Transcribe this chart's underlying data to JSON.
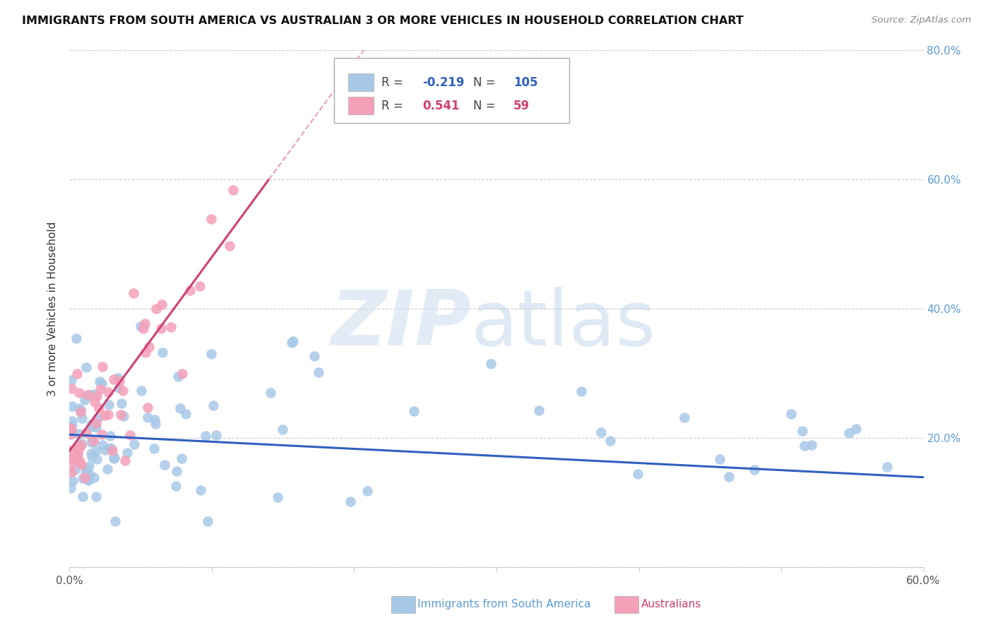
{
  "title": "IMMIGRANTS FROM SOUTH AMERICA VS AUSTRALIAN 3 OR MORE VEHICLES IN HOUSEHOLD CORRELATION CHART",
  "source": "Source: ZipAtlas.com",
  "ylabel": "3 or more Vehicles in Household",
  "xlim": [
    0.0,
    0.6
  ],
  "ylim": [
    0.0,
    0.8
  ],
  "xticks": [
    0.0,
    0.1,
    0.2,
    0.3,
    0.4,
    0.5,
    0.6
  ],
  "yticks": [
    0.0,
    0.2,
    0.4,
    0.6,
    0.8
  ],
  "blue_R": -0.219,
  "blue_N": 105,
  "pink_R": 0.541,
  "pink_N": 59,
  "blue_color": "#a8c8e8",
  "pink_color": "#f4a0b8",
  "blue_line_color": "#3060c0",
  "pink_line_color": "#d04070",
  "pink_line_dash_color": "#e8a0b8",
  "title_color": "#111111",
  "source_color": "#888888",
  "ylabel_color": "#333333",
  "right_tick_color": "#5b9bd5",
  "bottom_label_blue_color": "#5b9bd5",
  "bottom_label_pink_color": "#d04070",
  "grid_color": "#cccccc",
  "legend_text_color": "#444444",
  "legend_val_blue_color": "#3060c0",
  "legend_val_pink_color": "#d04070"
}
